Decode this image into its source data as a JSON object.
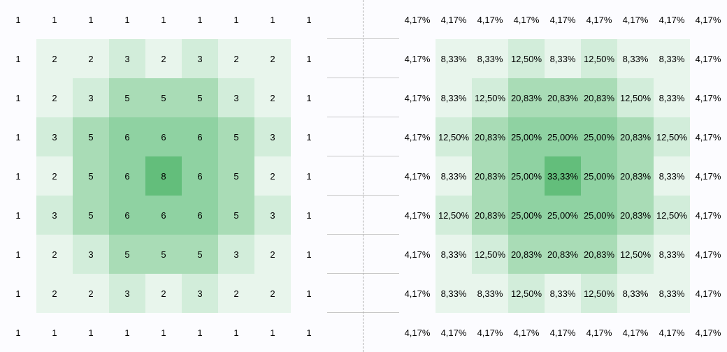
{
  "counts_grid": {
    "rows": [
      [
        "1",
        "1",
        "1",
        "1",
        "1",
        "1",
        "1",
        "1",
        "1"
      ],
      [
        "1",
        "2",
        "2",
        "3",
        "2",
        "3",
        "2",
        "2",
        "1"
      ],
      [
        "1",
        "2",
        "3",
        "5",
        "5",
        "5",
        "3",
        "2",
        "1"
      ],
      [
        "1",
        "3",
        "5",
        "6",
        "6",
        "6",
        "5",
        "3",
        "1"
      ],
      [
        "1",
        "2",
        "5",
        "6",
        "8",
        "6",
        "5",
        "2",
        "1"
      ],
      [
        "1",
        "3",
        "5",
        "6",
        "6",
        "6",
        "5",
        "3",
        "1"
      ],
      [
        "1",
        "2",
        "3",
        "5",
        "5",
        "5",
        "3",
        "2",
        "1"
      ],
      [
        "1",
        "2",
        "2",
        "3",
        "2",
        "3",
        "2",
        "2",
        "1"
      ],
      [
        "1",
        "1",
        "1",
        "1",
        "1",
        "1",
        "1",
        "1",
        "1"
      ]
    ]
  },
  "percent_grid": {
    "rows": [
      [
        "4,17%",
        "4,17%",
        "4,17%",
        "4,17%",
        "4,17%",
        "4,17%",
        "4,17%",
        "4,17%",
        "4,17%"
      ],
      [
        "4,17%",
        "8,33%",
        "8,33%",
        "12,50%",
        "8,33%",
        "12,50%",
        "8,33%",
        "8,33%",
        "4,17%"
      ],
      [
        "4,17%",
        "8,33%",
        "12,50%",
        "20,83%",
        "20,83%",
        "20,83%",
        "12,50%",
        "8,33%",
        "4,17%"
      ],
      [
        "4,17%",
        "12,50%",
        "20,83%",
        "25,00%",
        "25,00%",
        "25,00%",
        "20,83%",
        "12,50%",
        "4,17%"
      ],
      [
        "4,17%",
        "8,33%",
        "20,83%",
        "25,00%",
        "33,33%",
        "25,00%",
        "20,83%",
        "8,33%",
        "4,17%"
      ],
      [
        "4,17%",
        "12,50%",
        "20,83%",
        "25,00%",
        "25,00%",
        "25,00%",
        "20,83%",
        "12,50%",
        "4,17%"
      ],
      [
        "4,17%",
        "8,33%",
        "12,50%",
        "20,83%",
        "20,83%",
        "20,83%",
        "12,50%",
        "8,33%",
        "4,17%"
      ],
      [
        "4,17%",
        "8,33%",
        "8,33%",
        "12,50%",
        "8,33%",
        "12,50%",
        "8,33%",
        "8,33%",
        "4,17%"
      ],
      [
        "4,17%",
        "4,17%",
        "4,17%",
        "4,17%",
        "4,17%",
        "4,17%",
        "4,17%",
        "4,17%",
        "4,17%"
      ]
    ]
  },
  "shade_levels": [
    [
      0,
      0,
      0,
      0,
      0,
      0,
      0,
      0,
      0
    ],
    [
      0,
      1,
      1,
      2,
      1,
      2,
      1,
      1,
      0
    ],
    [
      0,
      1,
      2,
      3,
      3,
      3,
      2,
      1,
      0
    ],
    [
      0,
      2,
      3,
      4,
      4,
      4,
      3,
      2,
      0
    ],
    [
      0,
      1,
      3,
      4,
      5,
      4,
      3,
      1,
      0
    ],
    [
      0,
      2,
      3,
      4,
      4,
      4,
      3,
      2,
      0
    ],
    [
      0,
      1,
      2,
      3,
      3,
      3,
      2,
      1,
      0
    ],
    [
      0,
      1,
      1,
      2,
      1,
      2,
      1,
      1,
      0
    ],
    [
      0,
      0,
      0,
      0,
      0,
      0,
      0,
      0,
      0
    ]
  ],
  "colors": {
    "background": "#fcfcff",
    "scale_light": "#e8f5ec",
    "scale_mid": "#a9dcb6",
    "scale_max": "#63be7b",
    "divider": "#b0b0b0"
  }
}
